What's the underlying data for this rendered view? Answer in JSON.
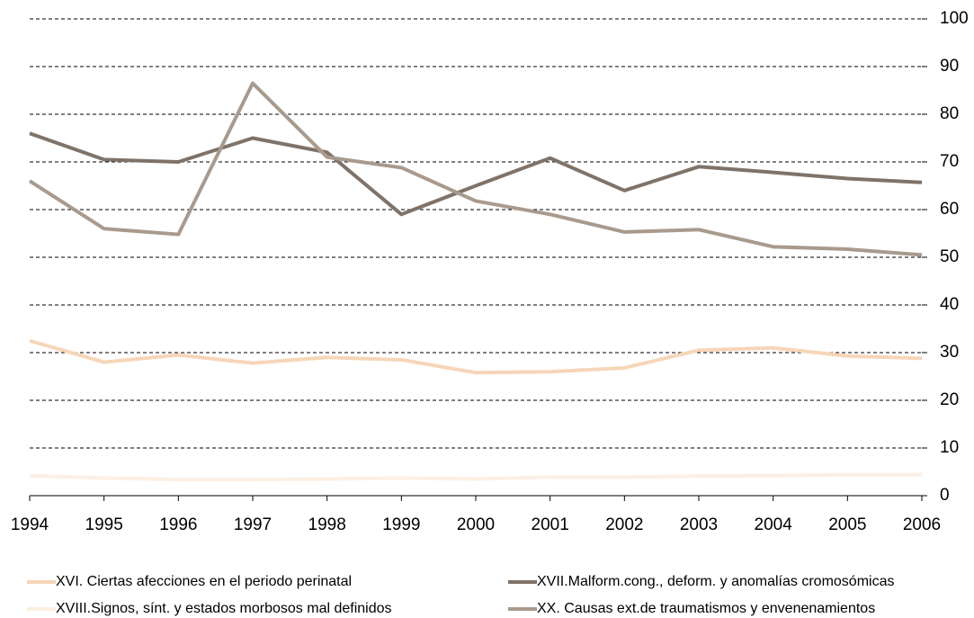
{
  "chart_data": {
    "type": "line",
    "categories": [
      "1994",
      "1995",
      "1996",
      "1997",
      "1998",
      "1999",
      "2000",
      "2001",
      "2002",
      "2003",
      "2004",
      "2005",
      "2006"
    ],
    "series": [
      {
        "name": "XVI. Ciertas afecciones en el periodo perinatal",
        "color": "#f6d6b8",
        "values": [
          32.5,
          28,
          29.5,
          27.8,
          29,
          28.5,
          25.8,
          26,
          26.8,
          30.5,
          31,
          29.3,
          28.8
        ]
      },
      {
        "name": "XVII.Malform.cong., deform. y anomalías cromosómicas",
        "color": "#7f7369",
        "values": [
          76,
          70.5,
          70,
          75,
          72,
          59,
          65,
          70.8,
          64,
          69,
          67.8,
          66.5,
          65.7
        ]
      },
      {
        "name": "XVIII.Signos, sínt. y estados morbosos mal definidos",
        "color": "#fcefe4",
        "values": [
          4.2,
          3.7,
          3.4,
          3.4,
          3.5,
          3.7,
          3.5,
          3.9,
          3.9,
          4.1,
          4.2,
          4.4,
          4.4
        ]
      },
      {
        "name": "XX. Causas ext.de traumatismos y envenenamientos",
        "color": "#a89a8d",
        "values": [
          66,
          56,
          54.8,
          86.5,
          71,
          68.8,
          61.8,
          59,
          55.3,
          55.8,
          52.2,
          51.7,
          50.5
        ]
      }
    ],
    "ylim": [
      0,
      100
    ],
    "yticks": [
      0,
      10,
      20,
      30,
      40,
      50,
      60,
      70,
      80,
      90,
      100
    ],
    "grid": true,
    "legend": "bottom"
  }
}
